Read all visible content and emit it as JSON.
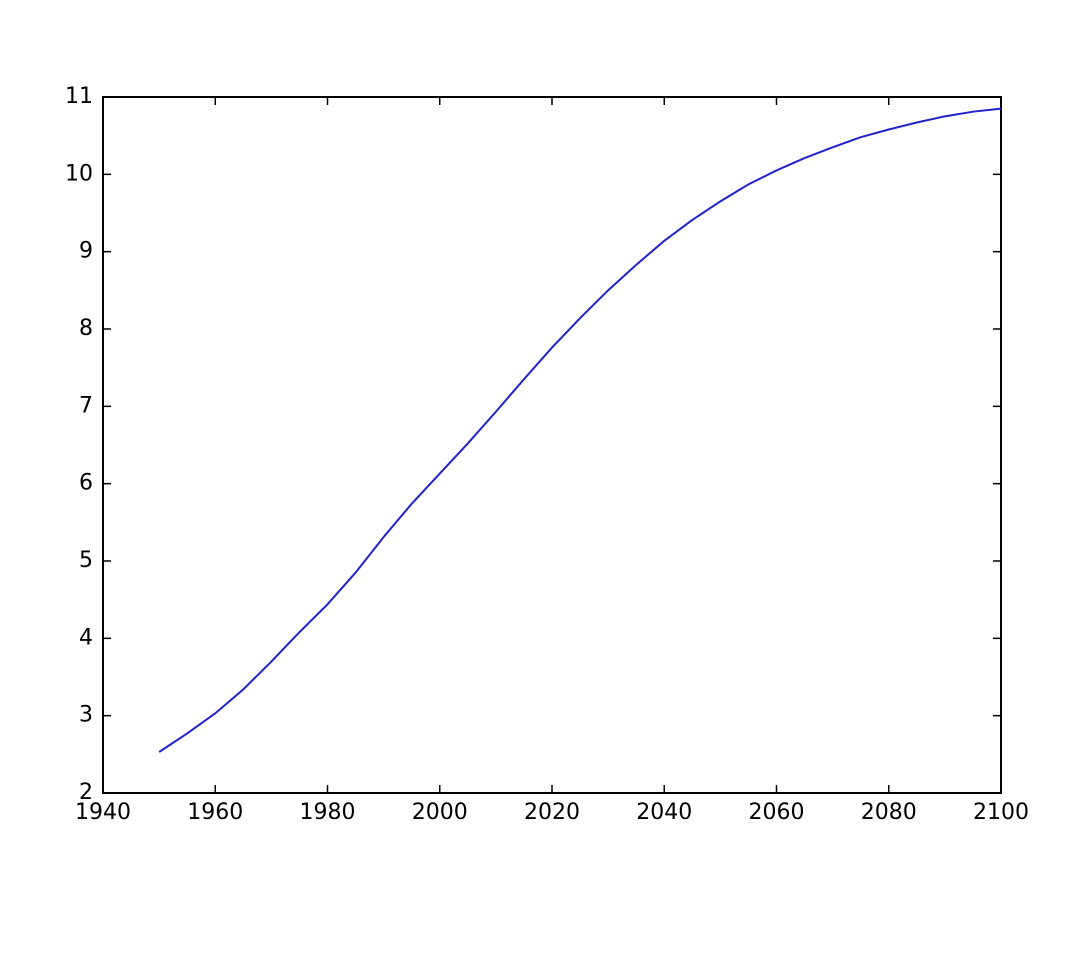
{
  "chart_data": {
    "type": "line",
    "x": [
      1950,
      1955,
      1960,
      1965,
      1970,
      1975,
      1980,
      1985,
      1990,
      1995,
      2000,
      2005,
      2010,
      2015,
      2020,
      2025,
      2030,
      2035,
      2040,
      2045,
      2050,
      2055,
      2060,
      2065,
      2070,
      2075,
      2080,
      2085,
      2090,
      2095,
      2100
    ],
    "series": [
      {
        "color": "#2222cc",
        "values": [
          2.53,
          2.77,
          3.03,
          3.34,
          3.7,
          4.08,
          4.44,
          4.85,
          5.31,
          5.74,
          6.13,
          6.52,
          6.93,
          7.35,
          7.76,
          8.14,
          8.5,
          8.83,
          9.14,
          9.41,
          9.65,
          9.87,
          10.05,
          10.21,
          10.35,
          10.48,
          10.58,
          10.67,
          10.75,
          10.81,
          10.85
        ]
      }
    ],
    "xlim": [
      1940,
      2100
    ],
    "xticks": [
      1940,
      1960,
      1980,
      2000,
      2020,
      2040,
      2060,
      2080,
      2100
    ],
    "ylim": [
      2,
      11
    ],
    "yticks": [
      2,
      3,
      4,
      5,
      6,
      7,
      8,
      9,
      10,
      11
    ],
    "grid": false
  }
}
